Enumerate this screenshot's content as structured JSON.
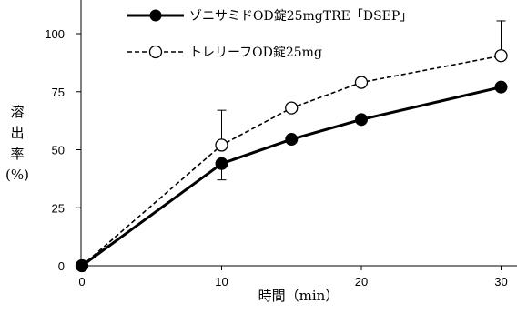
{
  "chart_data": {
    "type": "line",
    "xlabel": "時間（min）",
    "ylabel_chars": [
      "溶",
      "出",
      "率",
      "(%)"
    ],
    "x": [
      0,
      10,
      15,
      20,
      30
    ],
    "xlim": [
      0,
      31
    ],
    "ylim": [
      0,
      115
    ],
    "xticks": [
      "0",
      "10",
      "20",
      "30"
    ],
    "yticks": [
      "0",
      "25",
      "50",
      "75",
      "100"
    ],
    "grid": false,
    "legend_position": "top-center",
    "series": [
      {
        "name": "ゾニサミドOD錠25mgTRE「DSEP」",
        "values": [
          0,
          44,
          54.5,
          63,
          77
        ],
        "err_low": [
          0,
          7,
          0,
          0,
          0
        ],
        "err_high": [
          0,
          0,
          0,
          0,
          0
        ],
        "style": "solid",
        "marker": "filled-circle",
        "color": "#000000"
      },
      {
        "name": "トレリーフOD錠25mg",
        "values": [
          0,
          52,
          68,
          79,
          90.5
        ],
        "err_low": [
          0,
          0,
          0,
          0,
          0
        ],
        "err_high": [
          0,
          15,
          0,
          0,
          15
        ],
        "style": "dashed",
        "marker": "open-circle",
        "color": "#000000"
      }
    ]
  }
}
